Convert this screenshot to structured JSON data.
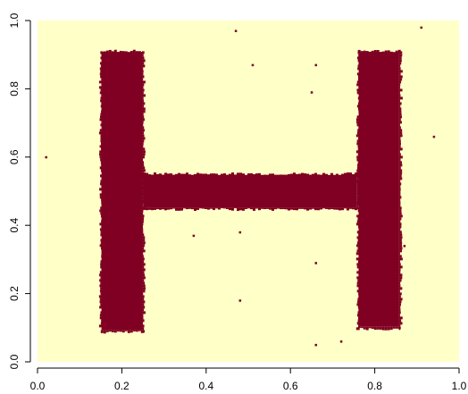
{
  "chart_data": {
    "type": "heatmap",
    "title": "",
    "xlabel": "",
    "ylabel": "",
    "xlim": [
      0,
      1
    ],
    "ylim": [
      0,
      1
    ],
    "grid": false,
    "legend": "none",
    "x_ticks": [
      {
        "value": 0.0,
        "label": "0.0"
      },
      {
        "value": 0.2,
        "label": "0.2"
      },
      {
        "value": 0.4,
        "label": "0.4"
      },
      {
        "value": 0.6,
        "label": "0.6"
      },
      {
        "value": 0.8,
        "label": "0.8"
      },
      {
        "value": 1.0,
        "label": "1.0"
      }
    ],
    "y_ticks": [
      {
        "value": 0.0,
        "label": "0.0"
      },
      {
        "value": 0.2,
        "label": "0.2"
      },
      {
        "value": 0.4,
        "label": "0.4"
      },
      {
        "value": 0.6,
        "label": "0.6"
      },
      {
        "value": 0.8,
        "label": "0.8"
      },
      {
        "value": 1.0,
        "label": "1.0"
      }
    ],
    "colors": {
      "background": "#ffffc8",
      "foreground": "#7f0022",
      "axis": "#000000"
    },
    "regions": [
      {
        "name": "left-stem",
        "x": [
          0.15,
          0.25
        ],
        "y": [
          0.09,
          0.91
        ],
        "value": 1
      },
      {
        "name": "crossbar",
        "x": [
          0.25,
          0.76
        ],
        "y": [
          0.45,
          0.55
        ],
        "value": 1
      },
      {
        "name": "right-stem",
        "x": [
          0.76,
          0.86
        ],
        "y": [
          0.1,
          0.91
        ],
        "value": 1
      }
    ],
    "speckles": [
      {
        "x": 0.02,
        "y": 0.6
      },
      {
        "x": 0.47,
        "y": 0.97
      },
      {
        "x": 0.51,
        "y": 0.87
      },
      {
        "x": 0.66,
        "y": 0.87
      },
      {
        "x": 0.65,
        "y": 0.79
      },
      {
        "x": 0.94,
        "y": 0.66
      },
      {
        "x": 0.91,
        "y": 0.98
      },
      {
        "x": 0.37,
        "y": 0.37
      },
      {
        "x": 0.48,
        "y": 0.38
      },
      {
        "x": 0.87,
        "y": 0.34
      },
      {
        "x": 0.66,
        "y": 0.29
      },
      {
        "x": 0.48,
        "y": 0.18
      },
      {
        "x": 0.66,
        "y": 0.05
      },
      {
        "x": 0.72,
        "y": 0.06
      }
    ]
  }
}
